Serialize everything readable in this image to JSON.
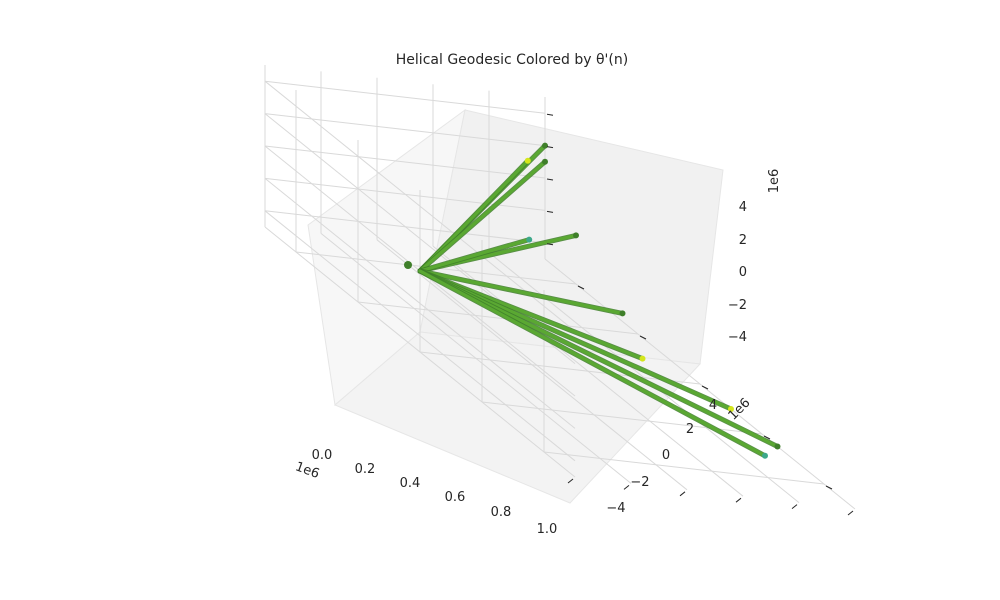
{
  "chart_data": {
    "type": "line",
    "title": "Helical Geodesic Colored by θ'(n)",
    "projection": "3d",
    "grid": true,
    "legend": "none",
    "axes": {
      "x": {
        "ticks": [
          "0.0",
          "0.2",
          "0.4",
          "0.6",
          "0.8",
          "1.0"
        ],
        "offset": "1e6",
        "range": [
          0,
          1.0
        ]
      },
      "y": {
        "ticks": [
          "−4",
          "−2",
          "0",
          "2",
          "4"
        ],
        "offset": "1e6",
        "range": [
          -5,
          5
        ]
      },
      "z": {
        "ticks": [
          "4",
          "2",
          "0",
          "−2",
          "−4"
        ],
        "offset": "1e6",
        "range": [
          -5,
          5
        ]
      }
    },
    "colors": {
      "ray": "#5aa832",
      "ray_dark": "#3f7f2a",
      "tip_bright": "#d4e61c",
      "tip_teal": "#3da88a"
    },
    "series": [
      {
        "start": [
          0.0,
          0.0,
          0.0
        ],
        "end": [
          1.0,
          5.0,
          2.0
        ],
        "tip": "dark"
      },
      {
        "start": [
          0.0,
          0.0,
          0.0
        ],
        "end": [
          0.85,
          4.2,
          2.0
        ],
        "tip": "bright"
      },
      {
        "start": [
          0.0,
          0.0,
          0.0
        ],
        "end": [
          1.0,
          5.0,
          1.0
        ],
        "tip": "dark"
      },
      {
        "start": [
          0.0,
          0.0,
          0.0
        ],
        "end": [
          1.0,
          4.0,
          -2.0
        ],
        "tip": "dark"
      },
      {
        "start": [
          0.0,
          0.0,
          0.0
        ],
        "end": [
          0.7,
          2.8,
          -1.0
        ],
        "tip": "teal"
      },
      {
        "start": [
          0.0,
          0.0,
          0.0
        ],
        "end": [
          1.0,
          2.5,
          -4.5
        ],
        "tip": "dark"
      },
      {
        "start": [
          0.0,
          0.0,
          0.0
        ],
        "end": [
          0.85,
          0.5,
          -4.5
        ],
        "tip": "bright"
      },
      {
        "start": [
          0.0,
          0.0,
          0.0
        ],
        "end": [
          1.0,
          -1.0,
          -5.0
        ],
        "tip": "bright"
      },
      {
        "start": [
          0.0,
          0.0,
          0.0
        ],
        "end": [
          1.0,
          -2.5,
          -5.0
        ],
        "tip": "dark"
      },
      {
        "start": [
          0.0,
          0.0,
          0.0
        ],
        "end": [
          0.9,
          -3.0,
          -5.0
        ],
        "tip": "teal"
      }
    ]
  }
}
